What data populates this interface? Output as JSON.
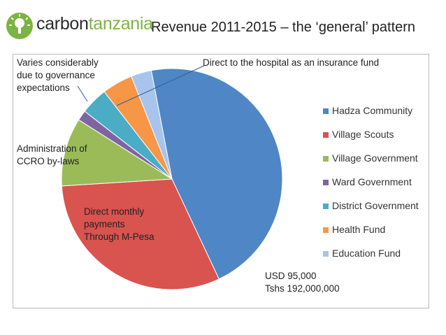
{
  "header": {
    "logo_text_prefix": "carbon",
    "logo_text_accent": "tanzania",
    "title": "Revenue 2011-2015 – the ‘general’ pattern"
  },
  "colors": {
    "logo_green": "#7cb342",
    "hadza": "#4f86c6",
    "scouts": "#d9534f",
    "village_gov": "#9bbb59",
    "ward": "#8064a2",
    "district": "#4bacc6",
    "health": "#f79646",
    "education": "#a7c4ec"
  },
  "chart_data": {
    "type": "pie",
    "title": "Revenue 2011-2015 – the ‘general’ pattern",
    "slices": [
      {
        "label": "Hadza Community",
        "value": 46,
        "color_key": "hadza"
      },
      {
        "label": "Village Scouts",
        "value": 31,
        "color_key": "scouts"
      },
      {
        "label": "Village Government",
        "value": 10,
        "color_key": "village_gov"
      },
      {
        "label": "Ward Government",
        "value": 1.5,
        "color_key": "ward"
      },
      {
        "label": "District Government",
        "value": 4,
        "color_key": "district"
      },
      {
        "label": "Health Fund",
        "value": 4.5,
        "color_key": "health"
      },
      {
        "label": "Education Fund",
        "value": 3,
        "color_key": "education"
      }
    ],
    "legend_position": "right",
    "annotations": {
      "district": [
        "Varies considerably",
        "due to governance",
        "expectations"
      ],
      "health": [
        "Direct to the hospital as an insurance fund"
      ],
      "village_gov": [
        "Administration of",
        "CCRO by-laws"
      ],
      "scouts": [
        "Direct monthly",
        "payments",
        "Through M-Pesa"
      ],
      "total": [
        "USD 95,000",
        "Tshs 192,000,000"
      ]
    }
  }
}
